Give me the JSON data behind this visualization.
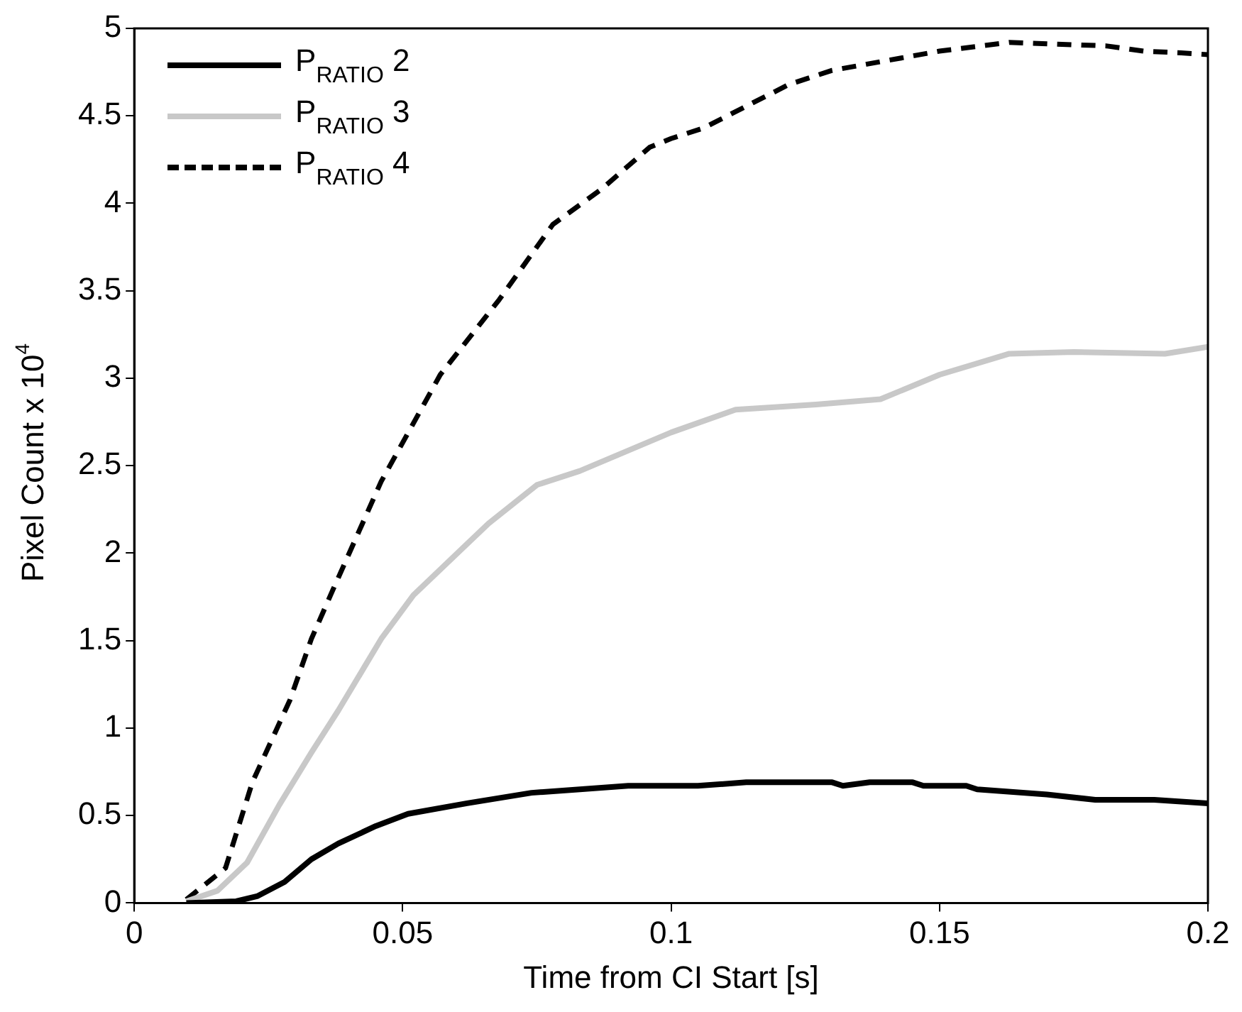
{
  "chart_data": {
    "type": "line",
    "xlabel": "Time from CI Start [s]",
    "ylabel": "Pixel Count x 10$^{4}$",
    "xlim": [
      0,
      0.2
    ],
    "xticks": [
      0,
      0.05,
      0.1,
      0.15,
      0.2
    ],
    "ylim": [
      0,
      5
    ],
    "yticks": [
      0,
      0.5,
      1,
      1.5,
      2,
      2.5,
      3,
      3.5,
      4,
      4.5,
      5
    ],
    "grid": false,
    "legend": "top left",
    "marker": "none",
    "series": [
      {
        "name": "P$_{RATIO}$ 2",
        "color": "#000000",
        "line_style": "solid",
        "x": [
          0.0097,
          0.019,
          0.023,
          0.028,
          0.033,
          0.038,
          0.045,
          0.051,
          0.062,
          0.074,
          0.083,
          0.092,
          0.105,
          0.114,
          0.13,
          0.132,
          0.137,
          0.145,
          0.147,
          0.155,
          0.157,
          0.17,
          0.179,
          0.19,
          0.2
        ],
        "values": [
          0,
          0.01,
          0.04,
          0.12,
          0.25,
          0.34,
          0.44,
          0.51,
          0.57,
          0.63,
          0.65,
          0.67,
          0.67,
          0.69,
          0.69,
          0.67,
          0.69,
          0.69,
          0.67,
          0.67,
          0.65,
          0.62,
          0.59,
          0.59,
          0.57
        ]
      },
      {
        "name": "P$_{RATIO}$ 3",
        "color": "#c8c8c8",
        "line_style": "solid",
        "x": [
          0.0097,
          0.0155,
          0.021,
          0.027,
          0.033,
          0.038,
          0.046,
          0.052,
          0.066,
          0.075,
          0.083,
          0.1,
          0.112,
          0.127,
          0.139,
          0.15,
          0.163,
          0.175,
          0.192,
          0.2
        ],
        "values": [
          0.01,
          0.07,
          0.23,
          0.56,
          0.86,
          1.1,
          1.51,
          1.76,
          2.17,
          2.39,
          2.47,
          2.69,
          2.82,
          2.85,
          2.88,
          3.02,
          3.14,
          3.15,
          3.14,
          3.18
        ]
      },
      {
        "name": "P$_{RATIO}$ 4",
        "color": "#000000",
        "line_style": "dashed",
        "x": [
          0.0097,
          0.017,
          0.022,
          0.029,
          0.033,
          0.037,
          0.046,
          0.057,
          0.068,
          0.078,
          0.087,
          0.096,
          0.1,
          0.106,
          0.122,
          0.13,
          0.15,
          0.163,
          0.181,
          0.188,
          0.195,
          0.2
        ],
        "values": [
          0.02,
          0.2,
          0.69,
          1.16,
          1.51,
          1.79,
          2.41,
          3.02,
          3.45,
          3.88,
          4.08,
          4.32,
          4.37,
          4.43,
          4.68,
          4.76,
          4.87,
          4.92,
          4.9,
          4.87,
          4.86,
          4.85
        ]
      }
    ]
  }
}
